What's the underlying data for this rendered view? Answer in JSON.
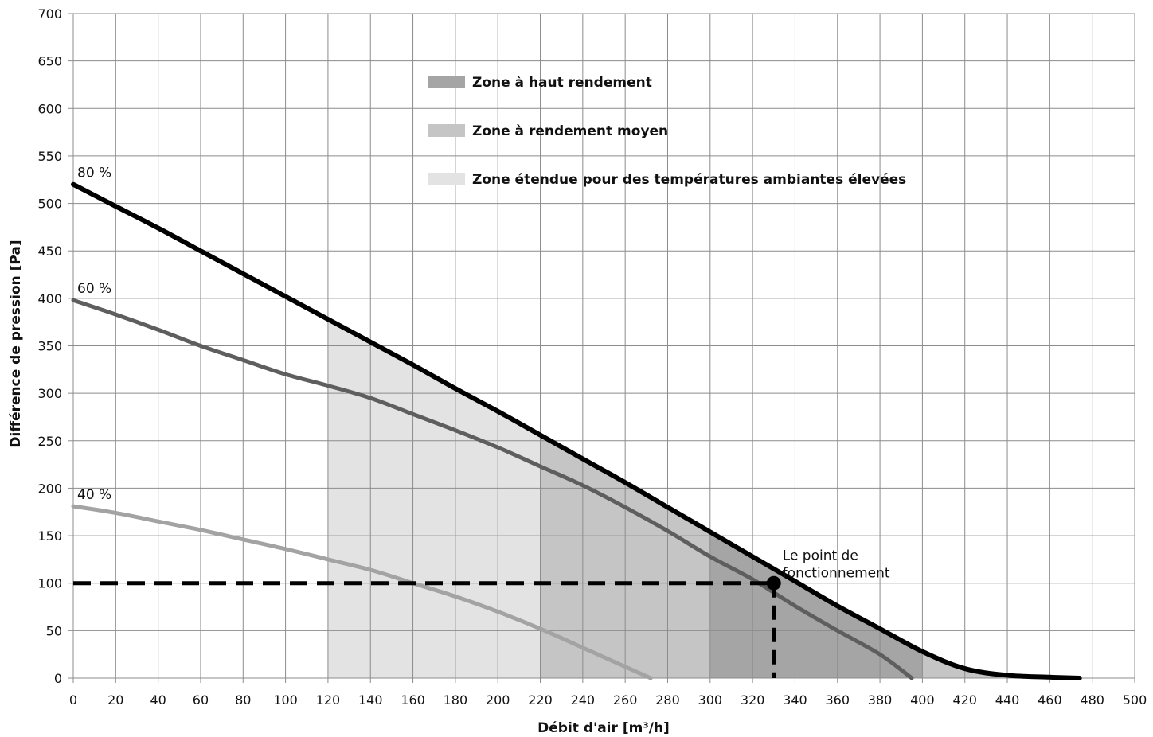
{
  "chart_data": {
    "type": "line",
    "xlabel": "Débit d'air [m³/h]",
    "ylabel": "Différence de pression [Pa]",
    "xlim": [
      0,
      500
    ],
    "ylim": [
      0,
      700
    ],
    "x_ticks": [
      0,
      20,
      40,
      60,
      80,
      100,
      120,
      140,
      160,
      180,
      200,
      220,
      240,
      260,
      280,
      300,
      320,
      340,
      360,
      380,
      400,
      420,
      440,
      460,
      480,
      500
    ],
    "y_ticks": [
      0,
      50,
      100,
      150,
      200,
      250,
      300,
      350,
      400,
      450,
      500,
      550,
      600,
      650,
      700
    ],
    "grid": true,
    "legend_position": "top-center",
    "series": [
      {
        "name": "80 %",
        "color": "#000000",
        "points": [
          [
            0,
            520
          ],
          [
            20,
            497
          ],
          [
            40,
            474
          ],
          [
            60,
            450
          ],
          [
            80,
            426
          ],
          [
            100,
            402
          ],
          [
            120,
            378
          ],
          [
            140,
            354
          ],
          [
            160,
            330
          ],
          [
            180,
            305
          ],
          [
            200,
            281
          ],
          [
            220,
            256
          ],
          [
            240,
            231
          ],
          [
            260,
            206
          ],
          [
            280,
            180
          ],
          [
            300,
            154
          ],
          [
            320,
            128
          ],
          [
            340,
            102
          ],
          [
            360,
            76
          ],
          [
            380,
            52
          ],
          [
            400,
            28
          ],
          [
            420,
            10
          ],
          [
            440,
            3
          ],
          [
            460,
            1
          ],
          [
            474,
            0
          ]
        ]
      },
      {
        "name": "60 %",
        "color": "#5e5e5e",
        "points": [
          [
            0,
            398
          ],
          [
            20,
            383
          ],
          [
            40,
            367
          ],
          [
            60,
            350
          ],
          [
            80,
            335
          ],
          [
            100,
            320
          ],
          [
            120,
            308
          ],
          [
            140,
            295
          ],
          [
            160,
            278
          ],
          [
            180,
            261
          ],
          [
            200,
            243
          ],
          [
            220,
            223
          ],
          [
            240,
            203
          ],
          [
            260,
            180
          ],
          [
            280,
            155
          ],
          [
            300,
            128
          ],
          [
            320,
            104
          ],
          [
            340,
            76
          ],
          [
            360,
            50
          ],
          [
            380,
            25
          ],
          [
            395,
            0
          ]
        ]
      },
      {
        "name": "40 %",
        "color": "#a3a3a3",
        "points": [
          [
            0,
            181
          ],
          [
            20,
            174
          ],
          [
            40,
            165
          ],
          [
            60,
            156
          ],
          [
            80,
            146
          ],
          [
            100,
            136
          ],
          [
            120,
            125
          ],
          [
            140,
            114
          ],
          [
            160,
            100
          ],
          [
            180,
            86
          ],
          [
            200,
            70
          ],
          [
            220,
            52
          ],
          [
            240,
            32
          ],
          [
            260,
            12
          ],
          [
            272,
            0
          ]
        ]
      }
    ],
    "zones": [
      {
        "name": "Zone étendue pour des températures ambiantes élevées",
        "color": "#e3e3e3",
        "x_start": 120,
        "x_end": 220
      },
      {
        "name": "Zone à rendement moyen",
        "color": "#c5c5c5",
        "x_start": 220,
        "x_end": 300
      },
      {
        "name": "Zone à haut rendement",
        "color": "#a5a5a5",
        "x_start": 300,
        "x_end": 400
      },
      {
        "name": "Zone à rendement moyen",
        "color": "#c5c5c5",
        "x_start": 400,
        "x_end": 474
      }
    ],
    "legend": [
      {
        "label": "Zone à haut rendement",
        "color": "#a5a5a5"
      },
      {
        "label": "Zone à rendement moyen",
        "color": "#c5c5c5"
      },
      {
        "label": "Zone étendue pour des températures ambiantes élevées",
        "color": "#e3e3e3"
      }
    ],
    "operating_point": {
      "x": 330,
      "y": 100,
      "label_line1": "Le point de",
      "label_line2": "fonctionnement"
    }
  }
}
